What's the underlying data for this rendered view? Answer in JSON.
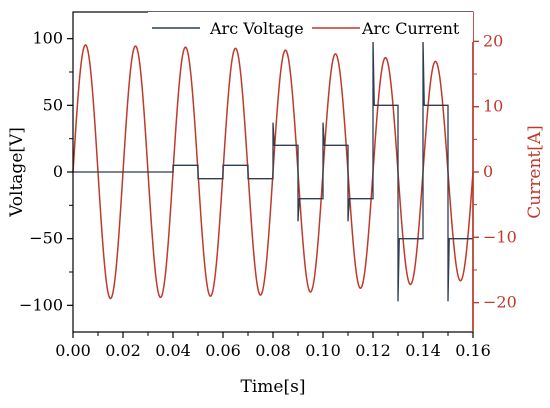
{
  "chart_data": {
    "type": "line",
    "xlabel": "Time[s]",
    "ylabel_left": "Voltage[V]",
    "ylabel_right": "Current[A]",
    "xlim": [
      0.0,
      0.16
    ],
    "ylim_left": [
      -120,
      120
    ],
    "ylim_right": [
      -24.5,
      24.5
    ],
    "x_ticks": [
      "0.00",
      "0.02",
      "0.04",
      "0.06",
      "0.08",
      "0.10",
      "0.12",
      "0.14",
      "0.16"
    ],
    "y_left_ticks": [
      "100",
      "50",
      "0",
      "-50",
      "-100"
    ],
    "y_right_ticks": [
      "20",
      "10",
      "0",
      "-10",
      "-20"
    ],
    "grid": false,
    "legend_position": "top-right",
    "colors": {
      "voltage": "#2c3e50",
      "current": "#c0392b",
      "axis_right": "#c0392b",
      "axis_left": "#000000"
    },
    "series": [
      {
        "name": "Arc Voltage",
        "axis": "left",
        "x": [
          0.0,
          0.04,
          0.04,
          0.05,
          0.05,
          0.06,
          0.06,
          0.07,
          0.07,
          0.08,
          0.08,
          0.0805,
          0.081,
          0.0815,
          0.09,
          0.09,
          0.0905,
          0.091,
          0.0915,
          0.1,
          0.1,
          0.1005,
          0.101,
          0.1015,
          0.11,
          0.11,
          0.1105,
          0.111,
          0.1115,
          0.12,
          0.12,
          0.1205,
          0.121,
          0.1215,
          0.13,
          0.13,
          0.1305,
          0.131,
          0.1315,
          0.14,
          0.14,
          0.1405,
          0.141,
          0.1415,
          0.15,
          0.15,
          0.1505,
          0.151,
          0.1515,
          0.16
        ],
        "y": [
          0,
          0,
          5,
          5,
          -5,
          -5,
          5,
          5,
          -5,
          -5,
          37,
          20,
          20,
          20,
          20,
          -37,
          -20,
          -20,
          -20,
          -20,
          37,
          20,
          20,
          20,
          20,
          -37,
          -20,
          -20,
          -20,
          -20,
          100,
          50,
          50,
          50,
          50,
          -97,
          -50,
          -50,
          -50,
          -50,
          100,
          50,
          50,
          50,
          50,
          -97,
          -50,
          -50,
          -50,
          -50
        ]
      },
      {
        "name": "Arc Current",
        "axis": "right",
        "waveform": "sine",
        "frequency_hz": 50,
        "amplitude_envelope": {
          "x": [
            0.0,
            0.08,
            0.16
          ],
          "y": [
            19.5,
            18.8,
            16.5
          ]
        },
        "sample_points": {
          "x": [
            0.005,
            0.015,
            0.025,
            0.035,
            0.045,
            0.055,
            0.065,
            0.075,
            0.085,
            0.095,
            0.105,
            0.115,
            0.125,
            0.135,
            0.145,
            0.155
          ],
          "y": [
            19.5,
            -19.6,
            19.5,
            -19.5,
            19.4,
            -19.4,
            19.3,
            -19.2,
            19.0,
            -19.0,
            18.7,
            -18.6,
            17.8,
            -17.7,
            17.4,
            -17.0
          ]
        }
      }
    ]
  }
}
